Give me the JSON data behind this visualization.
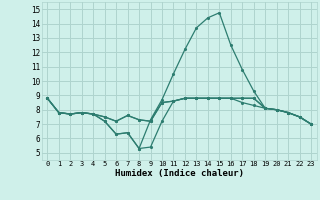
{
  "xlabel": "Humidex (Indice chaleur)",
  "xlim": [
    -0.5,
    23.5
  ],
  "ylim": [
    4.5,
    15.5
  ],
  "xticks": [
    0,
    1,
    2,
    3,
    4,
    5,
    6,
    7,
    8,
    9,
    10,
    11,
    12,
    13,
    14,
    15,
    16,
    17,
    18,
    19,
    20,
    21,
    22,
    23
  ],
  "yticks": [
    5,
    6,
    7,
    8,
    9,
    10,
    11,
    12,
    13,
    14,
    15
  ],
  "bg_color": "#cff0ea",
  "grid_color": "#aed4ce",
  "line_color": "#2d7d70",
  "lines": [
    [
      8.8,
      7.8,
      7.7,
      7.8,
      7.7,
      7.2,
      6.3,
      6.4,
      5.3,
      5.4,
      7.2,
      8.6,
      8.8,
      8.8,
      8.8,
      8.8,
      8.8,
      8.8,
      8.8,
      8.1,
      8.0,
      7.8,
      7.5,
      7.0
    ],
    [
      8.8,
      7.8,
      7.7,
      7.8,
      7.7,
      7.2,
      6.3,
      6.4,
      5.3,
      7.3,
      8.7,
      10.5,
      12.2,
      13.7,
      14.4,
      14.75,
      12.5,
      10.8,
      9.3,
      8.1,
      8.0,
      7.8,
      7.5,
      7.0
    ],
    [
      8.8,
      7.8,
      7.7,
      7.8,
      7.7,
      7.5,
      7.2,
      7.6,
      7.3,
      7.2,
      8.5,
      8.6,
      8.8,
      8.8,
      8.8,
      8.8,
      8.8,
      8.5,
      8.3,
      8.1,
      8.0,
      7.8,
      7.5,
      7.0
    ],
    [
      8.8,
      7.8,
      7.7,
      7.8,
      7.7,
      7.5,
      7.2,
      7.6,
      7.3,
      7.2,
      8.5,
      8.6,
      8.8,
      8.8,
      8.8,
      8.8,
      8.8,
      8.8,
      8.8,
      8.1,
      8.0,
      7.8,
      7.5,
      7.0
    ]
  ]
}
